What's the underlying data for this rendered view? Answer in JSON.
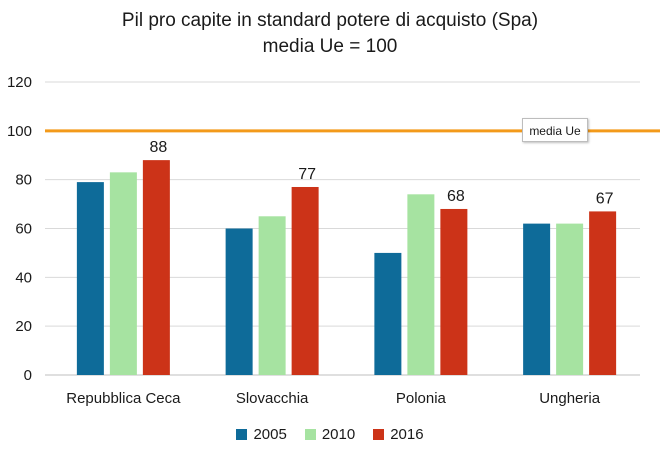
{
  "chart_data": {
    "type": "bar",
    "title": "Pil pro capite in standard potere di acquisto (Spa)",
    "subtitle": "media Ue = 100",
    "categories": [
      "Repubblica Ceca",
      "Slovacchia",
      "Polonia",
      "Ungheria"
    ],
    "series": [
      {
        "name": "2005",
        "values": [
          79,
          60,
          50,
          62
        ],
        "color": "#0e6b99"
      },
      {
        "name": "2010",
        "values": [
          83,
          65,
          74,
          62
        ],
        "color": "#a6e3a1"
      },
      {
        "name": "2016",
        "values": [
          88,
          77,
          68,
          67
        ],
        "color": "#cc3318"
      }
    ],
    "data_labels": {
      "series": "2016",
      "values": [
        "88",
        "77",
        "68",
        "67"
      ]
    },
    "reference_line": {
      "value": 100,
      "label": "media Ue",
      "color": "#f39a1a"
    },
    "ylim": [
      0,
      120
    ],
    "yticks": [
      "0",
      "20",
      "40",
      "60",
      "80",
      "100",
      "120"
    ],
    "grid": true,
    "legend_position": "bottom"
  }
}
